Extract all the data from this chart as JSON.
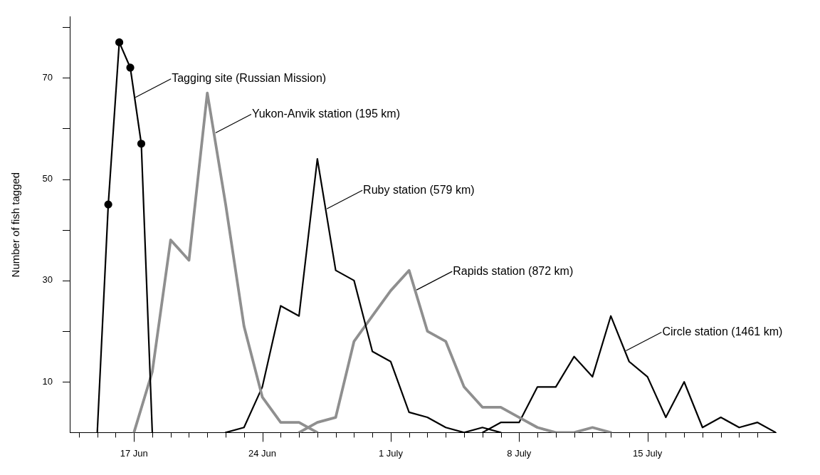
{
  "chart_data": {
    "type": "line",
    "ylabel": "Number of fish tagged",
    "xlim": [
      "--06-13T12:00",
      "--07-22"
    ],
    "xticks": [
      {
        "value": "--06-14",
        "label": null
      },
      {
        "value": "--06-15",
        "label": null
      },
      {
        "value": "--06-16",
        "label": null
      },
      {
        "value": "--06-17",
        "label": "17 Jun"
      },
      {
        "value": "--06-18",
        "label": null
      },
      {
        "value": "--06-19",
        "label": null
      },
      {
        "value": "--06-20",
        "label": null
      },
      {
        "value": "--06-21",
        "label": null
      },
      {
        "value": "--06-22",
        "label": null
      },
      {
        "value": "--06-23",
        "label": null
      },
      {
        "value": "--06-24",
        "label": "24 Jun"
      },
      {
        "value": "--06-25",
        "label": null
      },
      {
        "value": "--06-26",
        "label": null
      },
      {
        "value": "--06-27",
        "label": null
      },
      {
        "value": "--06-28",
        "label": null
      },
      {
        "value": "--06-29",
        "label": null
      },
      {
        "value": "--06-30",
        "label": null
      },
      {
        "value": "--07-01",
        "label": "1 July"
      },
      {
        "value": "--07-02",
        "label": null
      },
      {
        "value": "--07-03",
        "label": null
      },
      {
        "value": "--07-04",
        "label": null
      },
      {
        "value": "--07-05",
        "label": null
      },
      {
        "value": "--07-06",
        "label": null
      },
      {
        "value": "--07-07",
        "label": null
      },
      {
        "value": "--07-08",
        "label": "8 July"
      },
      {
        "value": "--07-09",
        "label": null
      },
      {
        "value": "--07-10",
        "label": null
      },
      {
        "value": "--07-11",
        "label": null
      },
      {
        "value": "--07-12",
        "label": null
      },
      {
        "value": "--07-13",
        "label": null
      },
      {
        "value": "--07-14",
        "label": null
      },
      {
        "value": "--07-15",
        "label": "15 July"
      },
      {
        "value": "--07-16",
        "label": null
      },
      {
        "value": "--07-17",
        "label": null
      },
      {
        "value": "--07-18",
        "label": null
      },
      {
        "value": "--07-19",
        "label": null
      },
      {
        "value": "--07-20",
        "label": null
      },
      {
        "value": "--07-21",
        "label": null
      }
    ],
    "ylim": [
      0,
      82
    ],
    "yticks": [
      10,
      {
        "value": 20,
        "label": null
      },
      30,
      {
        "value": 40,
        "label": null
      },
      50,
      {
        "value": 60,
        "label": null
      },
      70,
      {
        "value": 80,
        "label": null
      }
    ],
    "grid": false,
    "legend": false,
    "line_style": "solid",
    "series": [
      {
        "color": "#000000",
        "marker": "circle",
        "x": [
          "--06-15",
          "--06-15T14:24",
          "--06-16T04:48",
          "--06-16T19:12",
          "--06-17T09:36",
          "--06-18"
        ],
        "values": [
          0,
          45,
          77,
          72,
          57,
          0
        ]
      },
      {
        "color": "#8f8f8f",
        "marker": "none",
        "x": [
          "--06-17",
          "--06-18",
          "--06-19",
          "--06-20",
          "--06-21",
          "--06-22",
          "--06-23",
          "--06-24",
          "--06-25",
          "--06-26",
          "--06-27"
        ],
        "values": [
          0,
          12,
          38,
          34,
          67,
          45,
          21,
          7,
          2,
          2,
          0
        ]
      },
      {
        "color": "#000000",
        "marker": "none",
        "x": [
          "--06-22",
          "--06-23",
          "--06-24",
          "--06-25",
          "--06-26",
          "--06-27",
          "--06-28",
          "--06-29",
          "--06-30",
          "--07-01",
          "--07-02",
          "--07-03",
          "--07-04",
          "--07-05",
          "--07-06",
          "--07-07"
        ],
        "values": [
          0,
          1,
          9,
          25,
          23,
          54,
          32,
          30,
          16,
          14,
          4,
          3,
          1,
          0,
          1,
          0
        ]
      },
      {
        "color": "#8f8f8f",
        "marker": "none",
        "x": [
          "--06-26",
          "--06-27",
          "--06-28",
          "--06-29",
          "--06-30",
          "--07-01",
          "--07-02",
          "--07-03",
          "--07-04",
          "--07-05",
          "--07-06",
          "--07-07",
          "--07-08",
          "--07-09",
          "--07-10",
          "--07-11",
          "--07-12",
          "--07-13"
        ],
        "values": [
          0,
          2,
          3,
          18,
          23,
          28,
          32,
          20,
          18,
          9,
          5,
          5,
          3,
          1,
          0,
          0,
          1,
          0
        ]
      },
      {
        "color": "#000000",
        "marker": "none",
        "x": [
          "--07-06",
          "--07-07",
          "--07-08",
          "--07-09",
          "--07-10",
          "--07-11",
          "--07-12",
          "--07-13",
          "--07-14",
          "--07-15",
          "--07-16",
          "--07-17",
          "--07-18",
          "--07-19",
          "--07-20",
          "--07-21",
          "--07-22"
        ],
        "values": [
          0,
          2,
          2,
          9,
          9,
          15,
          11,
          23,
          14,
          11,
          3,
          10,
          1,
          3,
          1,
          2,
          0
        ]
      }
    ],
    "annotations": [
      {
        "text": "Tagging site (Russian Mission)",
        "x": "--06-17",
        "y": 66
      },
      {
        "text": "Yukon-Anvik station (195 km)",
        "x": "--06-21T09:00",
        "y": 59
      },
      {
        "text": "Ruby station (579 km)",
        "x": "--06-27T10:30",
        "y": 44
      },
      {
        "text": "Rapids station (872 km)",
        "x": "--07-02T08:00",
        "y": 28
      },
      {
        "text": "Circle station (1461 km)",
        "x": "--07-13T18:00",
        "y": 16
      }
    ]
  }
}
